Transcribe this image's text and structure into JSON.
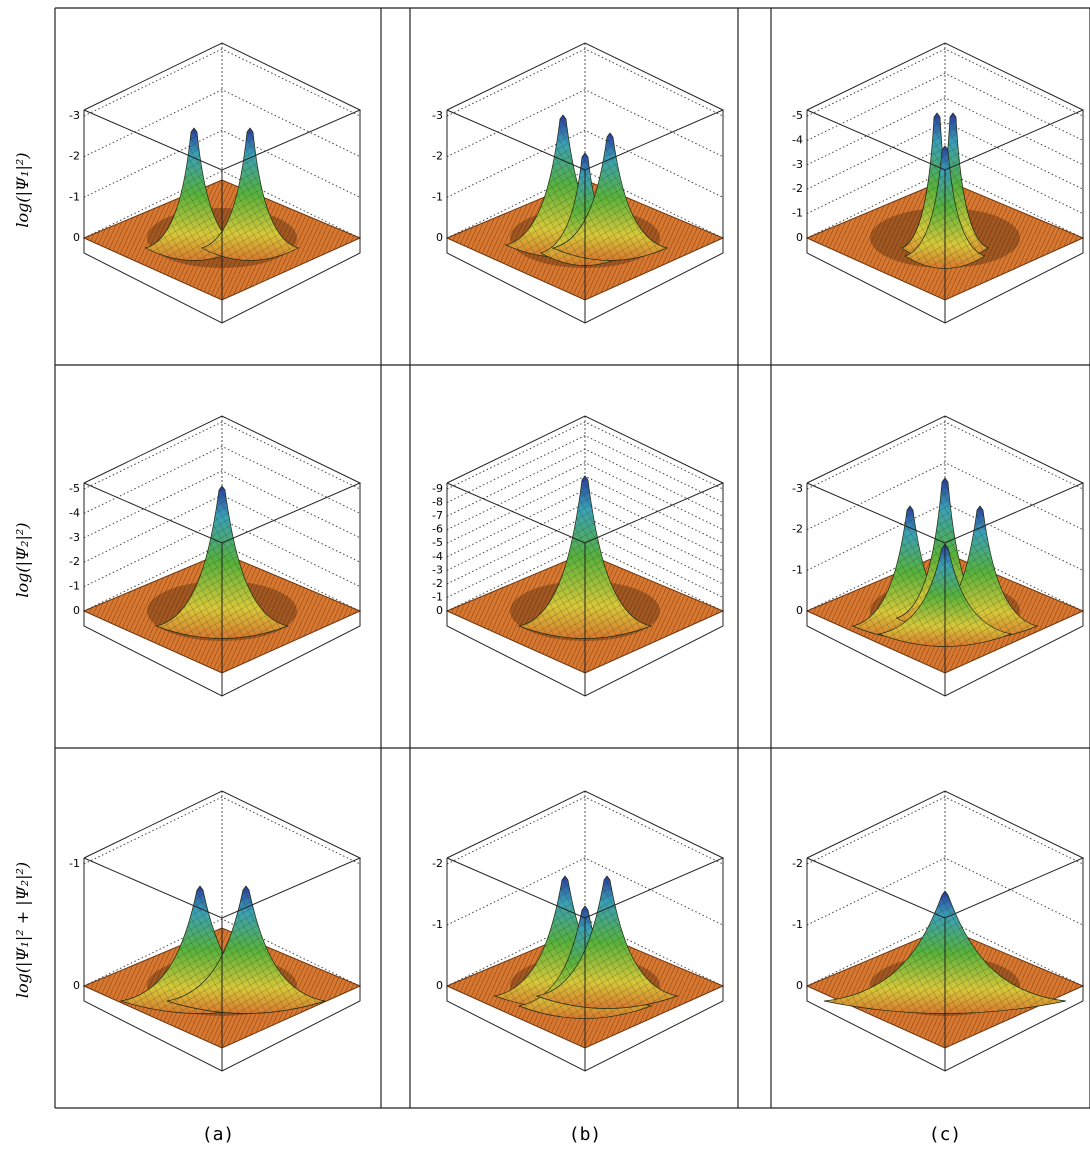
{
  "row_labels": [
    "log(|Ψ₁|²)",
    "log(|Ψ₂|²)",
    "log(|Ψ₁|² + |Ψ₂|²)"
  ],
  "column_labels": [
    "(a)",
    "(b)",
    "(c)"
  ],
  "panels": [
    [
      {
        "zticks": [
          0,
          -1,
          -2,
          -3
        ]
      },
      {
        "zticks": [
          0,
          -1,
          -2,
          -3
        ]
      },
      {
        "zticks": [
          0,
          -1,
          -2,
          -3,
          -4,
          -5
        ]
      }
    ],
    [
      {
        "zticks": [
          0,
          -1,
          -2,
          -3,
          -4,
          -5
        ]
      },
      {
        "zticks": [
          0,
          -1,
          -2,
          -3,
          -4,
          -5,
          -6,
          -7,
          -8,
          -9
        ]
      },
      {
        "zticks": [
          0,
          -1,
          -2,
          -3
        ]
      }
    ],
    [
      {
        "zticks": [
          0,
          -1
        ]
      },
      {
        "zticks": [
          0,
          -1,
          -2
        ]
      },
      {
        "zticks": [
          0,
          -1,
          -2
        ]
      }
    ]
  ]
}
